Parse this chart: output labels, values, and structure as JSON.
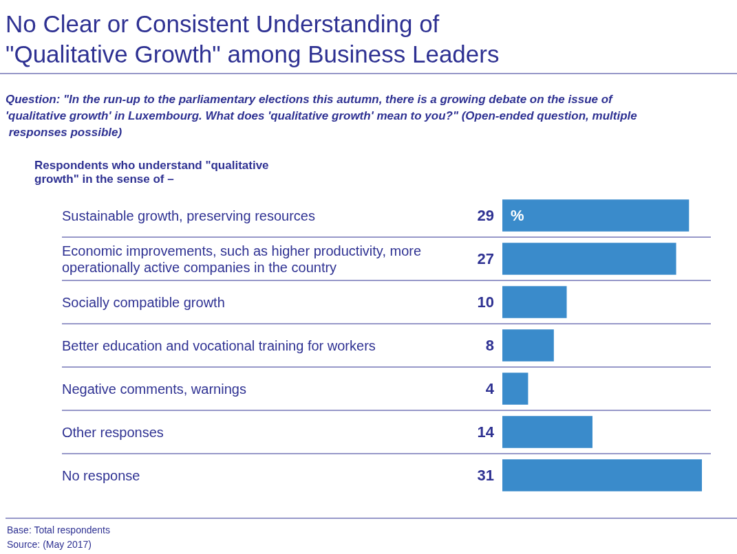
{
  "chart_data": {
    "type": "bar",
    "orientation": "horizontal",
    "title": "No Clear or Consistent Understanding of \"Qualitative Growth\" among Business Leaders",
    "subtitle": "Question: \"In the run-up to the parliamentary elections this autumn, there is a growing debate on the issue of 'qualitative growth' in Luxembourg. What does 'qualitative growth' mean to you?\" (Open-ended question, multiple responses possible)",
    "ylabel": "Respondents who understand \"qualitative growth\" in the sense of –",
    "categories": [
      "Sustainable growth, preserving resources",
      "Economic improvements, such as higher productivity, more operationally active companies in the country",
      "Socially compatible growth",
      "Better education and vocational training for workers",
      "Negative comments, warnings",
      "Other responses",
      "No response"
    ],
    "values": [
      29,
      27,
      10,
      8,
      4,
      14,
      31
    ],
    "color": "#3a8bcb",
    "data_labels": true,
    "annotations": [
      {
        "text": "%",
        "x": 0,
        "y": "Sustainable growth, preserving resources"
      },
      "Base: Total respondents",
      "Source: (May 2017)"
    ]
  }
}
